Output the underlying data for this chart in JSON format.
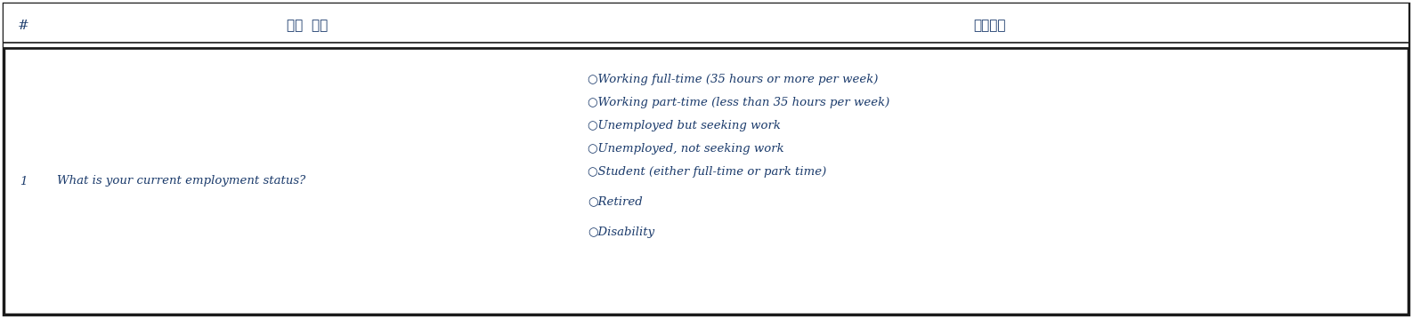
{
  "title_col1": "#",
  "title_col2": "설문  문항",
  "title_col3": "응답보기",
  "row_num": "1",
  "row_question": "What is your current employment status?",
  "row_answers": [
    "○Working full-time (35 hours or more per week)",
    "○Working part-time (less than 35 hours per week)",
    "○Unemployed but seeking work",
    "○Unemployed, not seeking work",
    "○Student (either full-time or park time)",
    "○Retired",
    "○Disability"
  ],
  "text_color": "#1a3a6b",
  "border_color": "#1a1a1a",
  "bg_color": "#ffffff",
  "header_bg": "#ffffff",
  "fig_width": 15.86,
  "fig_height": 3.58,
  "dpi": 100
}
